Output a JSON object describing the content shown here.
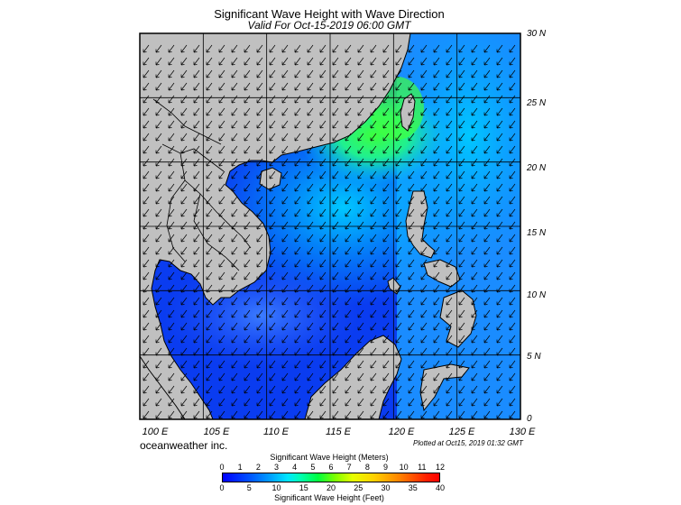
{
  "title": "Significant Wave Height with Wave Direction",
  "subtitle": "Valid For Oct-15-2019 06:00 GMT",
  "lat_labels": [
    "30 N",
    "25 N",
    "20 N",
    "15 N",
    "10 N",
    "5 N",
    "0"
  ],
  "lon_labels": [
    "100 E",
    "105 E",
    "110 E",
    "115 E",
    "120 E",
    "125 E",
    "130 E"
  ],
  "credit": "oceanweather inc.",
  "plotted": "Plotted at Oct15, 2019 01:32 GMT",
  "colorbar": {
    "title_meters": "Significant Wave Height (Meters)",
    "title_feet": "Significant Wave Height (Feet)",
    "meters_ticks": [
      "0",
      "1",
      "2",
      "3",
      "4",
      "5",
      "6",
      "7",
      "8",
      "9",
      "10",
      "11",
      "12"
    ],
    "feet_ticks": [
      "0",
      "5",
      "10",
      "15",
      "20",
      "25",
      "30",
      "35",
      "40"
    ]
  },
  "colors": {
    "land": "#c0c0c0",
    "low_wave": "#0a3cf0",
    "mid_wave": "#00a8ff",
    "high_wave": "#40ff40"
  },
  "map": {
    "lon_range": [
      100,
      130
    ],
    "lat_range": [
      0,
      30
    ],
    "wave_direction": "from northeast (arrows point southwest)"
  }
}
